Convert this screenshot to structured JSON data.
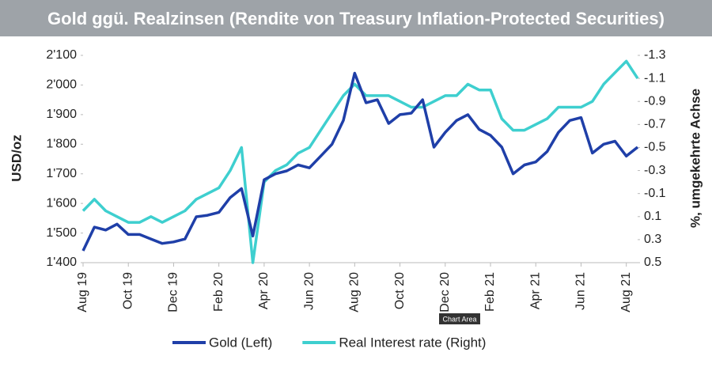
{
  "chart_data": {
    "type": "line",
    "title": "Gold ggü. Realzinsen (Rendite von Treasury Inflation-Protected Securities)",
    "y_label": "USD/oz",
    "y2_label": "%, umgekehrte Achse",
    "tooltip": "Chart Area",
    "categories": [
      "Aug 19",
      null,
      null,
      null,
      "Oct 19",
      null,
      null,
      null,
      "Dec 19",
      null,
      null,
      null,
      "Feb 20",
      null,
      null,
      null,
      "Apr 20",
      null,
      null,
      null,
      "Jun 20",
      null,
      null,
      null,
      "Aug 20",
      null,
      null,
      null,
      "Oct 20",
      null,
      null,
      null,
      "Dec 20",
      null,
      null,
      null,
      "Feb 21",
      null,
      null,
      null,
      "Apr 21",
      null,
      null,
      null,
      "Jun 21",
      null,
      null,
      null,
      "Aug 21",
      null
    ],
    "series": [
      {
        "name": "Gold (Left)",
        "color": "#1f3fa8",
        "values": [
          1440,
          1520,
          1510,
          1530,
          1495,
          1495,
          1480,
          1465,
          1470,
          1480,
          1555,
          1560,
          1570,
          1620,
          1650,
          1490,
          1680,
          1700,
          1710,
          1730,
          1720,
          1760,
          1800,
          1880,
          2040,
          1940,
          1950,
          1870,
          1900,
          1905,
          1950,
          1790,
          1840,
          1880,
          1900,
          1850,
          1830,
          1790,
          1700,
          1730,
          1740,
          1775,
          1840,
          1880,
          1890,
          1770,
          1800,
          1810,
          1760,
          1790
        ]
      },
      {
        "name": "Real Interest rate (Right)",
        "color": "#3ecfcf",
        "axis": "y2",
        "values": [
          0.05,
          -0.05,
          0.05,
          0.1,
          0.15,
          0.15,
          0.1,
          0.15,
          0.1,
          0.05,
          -0.05,
          -0.1,
          -0.15,
          -0.3,
          -0.5,
          0.5,
          -0.2,
          -0.3,
          -0.35,
          -0.45,
          -0.5,
          -0.65,
          -0.8,
          -0.95,
          -1.05,
          -0.95,
          -0.95,
          -0.95,
          -0.9,
          -0.85,
          -0.85,
          -0.9,
          -0.95,
          -0.95,
          -1.05,
          -1.0,
          -1.0,
          -0.75,
          -0.65,
          -0.65,
          -0.7,
          -0.75,
          -0.85,
          -0.85,
          -0.85,
          -0.9,
          -1.05,
          -1.15,
          -1.25,
          -1.1
        ]
      }
    ],
    "ylim": [
      1400,
      2100
    ],
    "yticks": [
      {
        "value": 1400,
        "label": "1'400"
      },
      {
        "value": 1500,
        "label": "1'500"
      },
      {
        "value": 1600,
        "label": "1'600"
      },
      {
        "value": 1700,
        "label": "1'700"
      },
      {
        "value": 1800,
        "label": "1'800"
      },
      {
        "value": 1900,
        "label": "1'900"
      },
      {
        "value": 2000,
        "label": "2'000"
      },
      {
        "value": 2100,
        "label": "2'100"
      }
    ],
    "y2lim": [
      0.5,
      -1.3
    ],
    "y2ticks": [
      0.5,
      0.3,
      0.1,
      -0.1,
      -0.3,
      -0.5,
      -0.7,
      -0.9,
      -1.1,
      -1.3
    ],
    "legend": "bottom",
    "grid": false
  }
}
